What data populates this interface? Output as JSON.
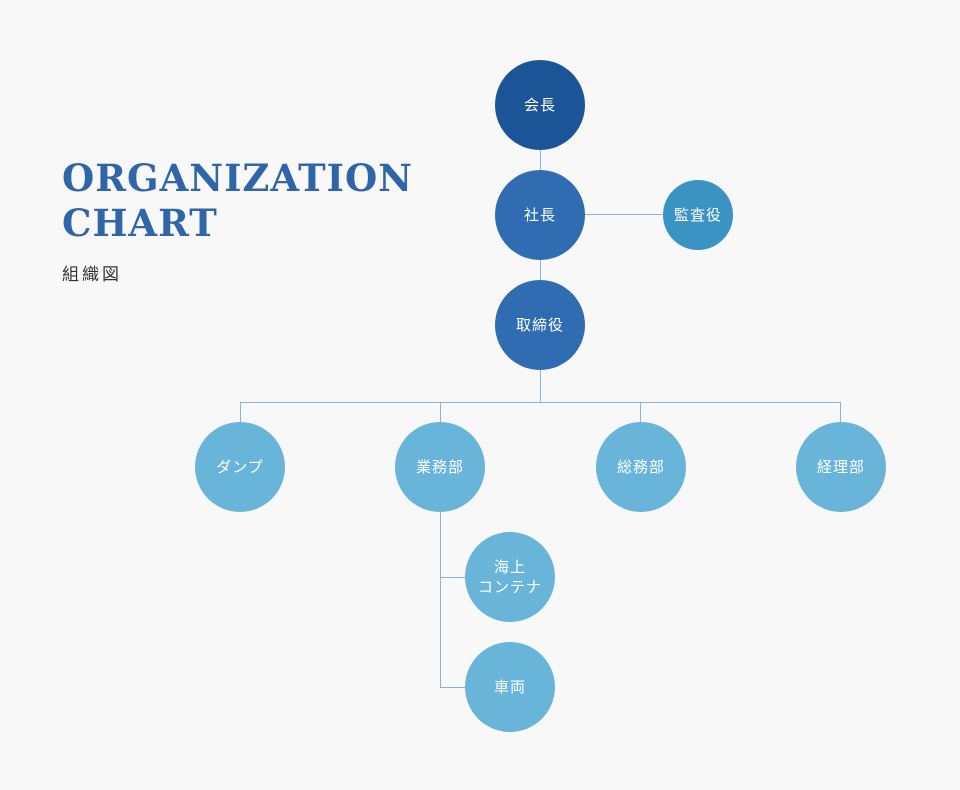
{
  "header": {
    "title_line1": "ORGANIZATION",
    "title_line2": "CHART",
    "subtitle": "組織図"
  },
  "nodes": {
    "chairman": "会長",
    "president": "社長",
    "auditor": "監査役",
    "directors": "取締役",
    "dump": "ダンプ",
    "operations": "業務部",
    "general_affairs": "総務部",
    "accounting": "経理部",
    "marine_container": "海上\nコンテナ",
    "vehicles": "車両"
  },
  "colors": {
    "background": "#f8f8f8",
    "title": "#2f66a9",
    "chairman": "#1b5597",
    "executive": "#2f6cb1",
    "auditor": "#3a93c3",
    "department": "#68b5d9",
    "connector": "#8db3d4"
  }
}
